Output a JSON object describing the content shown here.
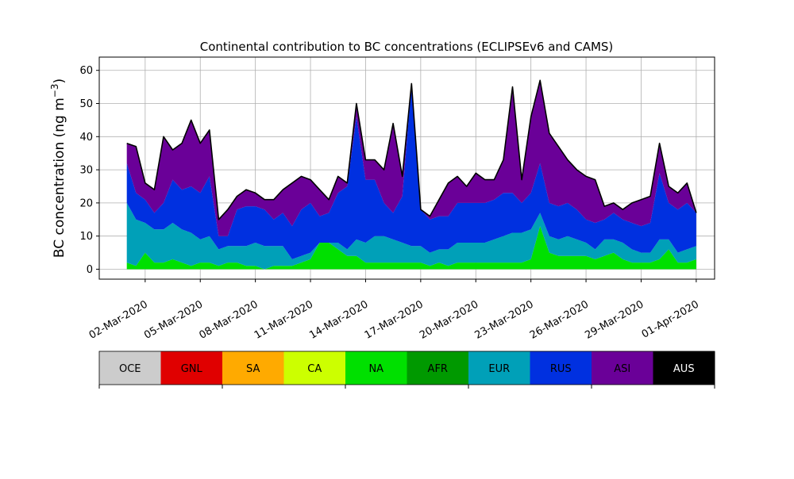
{
  "chart_data": {
    "type": "area",
    "title": "Continental contribution to BC concentrations (ECLIPSEv6 and CAMS)",
    "ylabel": "BC concentration (ng m⁻³)",
    "xlabel": "",
    "ylim": [
      -3,
      64
    ],
    "y_ticks": [
      0,
      10,
      20,
      30,
      40,
      50,
      60
    ],
    "x_range": [
      "2020-02-28T12:00",
      "2020-04-02T00:00"
    ],
    "x_ticks": [
      "2020-03-02",
      "2020-03-05",
      "2020-03-08",
      "2020-03-11",
      "2020-03-14",
      "2020-03-17",
      "2020-03-20",
      "2020-03-23",
      "2020-03-26",
      "2020-03-29",
      "2020-04-01"
    ],
    "x_tick_labels": [
      "02-Mar-2020",
      "05-Mar-2020",
      "08-Mar-2020",
      "11-Mar-2020",
      "14-Mar-2020",
      "17-Mar-2020",
      "20-Mar-2020",
      "23-Mar-2020",
      "26-Mar-2020",
      "29-Mar-2020",
      "01-Apr-2020"
    ],
    "grid": true,
    "stacking_order": [
      "NA",
      "EUR",
      "RUS",
      "ASI"
    ],
    "times": [
      "2020-03-01T00:00",
      "2020-03-01T12:00",
      "2020-03-02T00:00",
      "2020-03-02T12:00",
      "2020-03-03T00:00",
      "2020-03-03T12:00",
      "2020-03-04T00:00",
      "2020-03-04T12:00",
      "2020-03-05T00:00",
      "2020-03-05T12:00",
      "2020-03-06T00:00",
      "2020-03-06T12:00",
      "2020-03-07T00:00",
      "2020-03-07T12:00",
      "2020-03-08T00:00",
      "2020-03-08T12:00",
      "2020-03-09T00:00",
      "2020-03-09T12:00",
      "2020-03-10T00:00",
      "2020-03-10T12:00",
      "2020-03-11T00:00",
      "2020-03-11T12:00",
      "2020-03-12T00:00",
      "2020-03-12T12:00",
      "2020-03-13T00:00",
      "2020-03-13T12:00",
      "2020-03-14T00:00",
      "2020-03-14T12:00",
      "2020-03-15T00:00",
      "2020-03-15T12:00",
      "2020-03-16T00:00",
      "2020-03-16T12:00",
      "2020-03-17T00:00",
      "2020-03-17T12:00",
      "2020-03-18T00:00",
      "2020-03-18T12:00",
      "2020-03-19T00:00",
      "2020-03-19T12:00",
      "2020-03-20T00:00",
      "2020-03-20T12:00",
      "2020-03-21T00:00",
      "2020-03-21T12:00",
      "2020-03-22T00:00",
      "2020-03-22T12:00",
      "2020-03-23T00:00",
      "2020-03-23T12:00",
      "2020-03-24T00:00",
      "2020-03-24T12:00",
      "2020-03-25T00:00",
      "2020-03-25T12:00",
      "2020-03-26T00:00",
      "2020-03-26T12:00",
      "2020-03-27T00:00",
      "2020-03-27T12:00",
      "2020-03-28T00:00",
      "2020-03-28T12:00",
      "2020-03-29T00:00",
      "2020-03-29T12:00",
      "2020-03-30T00:00",
      "2020-03-30T12:00",
      "2020-03-31T00:00",
      "2020-03-31T12:00",
      "2020-04-01T00:00"
    ],
    "series": [
      {
        "name": "NA",
        "values": [
          2,
          1,
          5,
          2,
          2,
          3,
          2,
          1,
          2,
          2,
          1,
          2,
          2,
          1,
          1,
          0,
          1,
          1,
          1,
          2,
          3,
          8,
          8,
          6,
          4,
          4,
          2,
          2,
          2,
          2,
          2,
          2,
          2,
          1,
          2,
          1,
          2,
          2,
          2,
          2,
          2,
          2,
          2,
          2,
          3,
          13,
          5,
          4,
          4,
          4,
          4,
          3,
          4,
          5,
          3,
          2,
          2,
          2,
          3,
          6,
          2,
          2,
          3
        ]
      },
      {
        "name": "EUR",
        "values": [
          18,
          14,
          9,
          10,
          10,
          11,
          10,
          10,
          7,
          8,
          5,
          5,
          5,
          6,
          7,
          7,
          6,
          6,
          2,
          2,
          2,
          0,
          0,
          2,
          2,
          5,
          6,
          8,
          8,
          7,
          6,
          5,
          5,
          4,
          4,
          5,
          6,
          6,
          6,
          6,
          7,
          8,
          9,
          9,
          9,
          4,
          5,
          5,
          6,
          5,
          4,
          3,
          5,
          4,
          5,
          4,
          3,
          3,
          6,
          3,
          3,
          4,
          4
        ]
      },
      {
        "name": "RUS",
        "values": [
          12,
          8,
          7,
          5,
          8,
          13,
          12,
          14,
          14,
          18,
          4,
          3,
          11,
          12,
          11,
          11,
          8,
          10,
          10,
          14,
          15,
          8,
          9,
          15,
          19,
          37,
          19,
          17,
          10,
          8,
          14,
          49,
          11,
          10,
          10,
          10,
          12,
          12,
          12,
          12,
          12,
          13,
          12,
          9,
          11,
          15,
          10,
          10,
          10,
          9,
          7,
          8,
          6,
          8,
          7,
          8,
          8,
          9,
          20,
          11,
          13,
          14,
          10
        ]
      },
      {
        "name": "ASI",
        "values": [
          6,
          14,
          5,
          7,
          20,
          9,
          14,
          20,
          15,
          14,
          5,
          8,
          4,
          5,
          4,
          3,
          6,
          7,
          13,
          10,
          7,
          8,
          4,
          5,
          1,
          4,
          6,
          6,
          10,
          27,
          6,
          0,
          0,
          1,
          5,
          10,
          8,
          5,
          9,
          7,
          6,
          10,
          32,
          7,
          23,
          25,
          21,
          18,
          13,
          12,
          13,
          13,
          4,
          3,
          3,
          6,
          8,
          8,
          9,
          5,
          5,
          6,
          0
        ]
      }
    ],
    "total_line_color": "#000000",
    "colors": {
      "NA": "#00e000",
      "EUR": "#00a0b8",
      "RUS": "#0030e0",
      "ASI": "#6a0098"
    },
    "legend": {
      "placement": "below",
      "items": [
        {
          "label": "OCE",
          "color": "#cccccc",
          "text_color": "#000000"
        },
        {
          "label": "GNL",
          "color": "#e00000",
          "text_color": "#000000"
        },
        {
          "label": "SA",
          "color": "#ffaa00",
          "text_color": "#000000"
        },
        {
          "label": "CA",
          "color": "#ccff00",
          "text_color": "#000000"
        },
        {
          "label": "NA",
          "color": "#00e000",
          "text_color": "#000000"
        },
        {
          "label": "AFR",
          "color": "#009900",
          "text_color": "#000000"
        },
        {
          "label": "EUR",
          "color": "#00a0b8",
          "text_color": "#000000"
        },
        {
          "label": "RUS",
          "color": "#0030e0",
          "text_color": "#000000"
        },
        {
          "label": "ASI",
          "color": "#6a0098",
          "text_color": "#000000"
        },
        {
          "label": "AUS",
          "color": "#000000",
          "text_color": "#ffffff"
        }
      ]
    }
  }
}
